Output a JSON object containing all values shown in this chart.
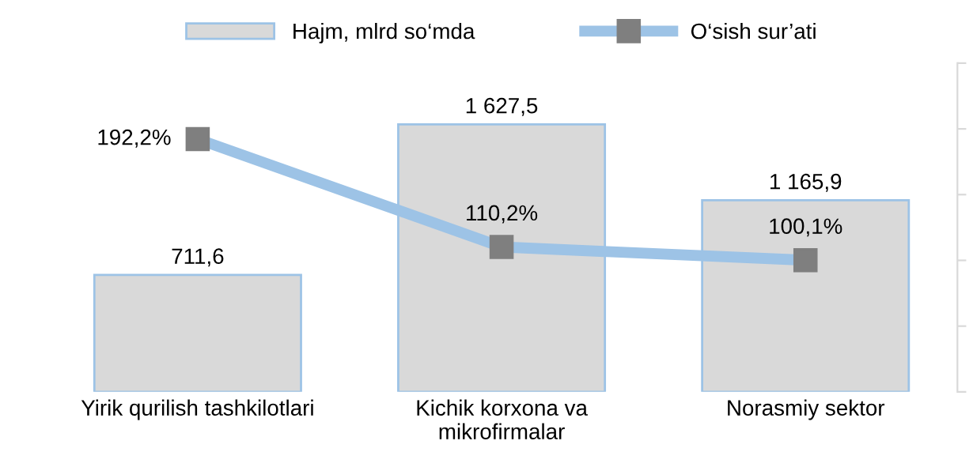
{
  "chart_data": {
    "type": "bar",
    "categories": [
      "Yirik qurilish tashkilotlari",
      "Kichik korxona va\nmikrofirmalar",
      "Norasmiy sektor"
    ],
    "series": [
      {
        "name": "Hajm, mlrd so‘mda",
        "color": "#d9d9d9",
        "values": [
          711.6,
          1627.5,
          1165.9
        ],
        "value_labels": [
          "711,6",
          "1 627,5",
          "1 165,9"
        ]
      },
      {
        "name": "O‘sish sur’ati",
        "type": "line",
        "axis": "y2",
        "color": "#9dc3e6",
        "marker": "square",
        "values": [
          192.2,
          110.2,
          100.1
        ],
        "value_labels": [
          "192,2%",
          "110,2%",
          "100,1%"
        ]
      }
    ],
    "ylim": [
      0,
      2000
    ],
    "y2lim": [
      0,
      250
    ],
    "y2ticks": [
      {
        "value": 0,
        "label": null
      },
      {
        "value": 50,
        "label": null
      },
      {
        "value": 100,
        "label": null
      },
      {
        "value": 150,
        "label": null
      },
      {
        "value": 200,
        "label": null
      },
      {
        "value": 250,
        "label": null
      }
    ],
    "tick_labels": "x",
    "legend": "top",
    "grid": false
  }
}
